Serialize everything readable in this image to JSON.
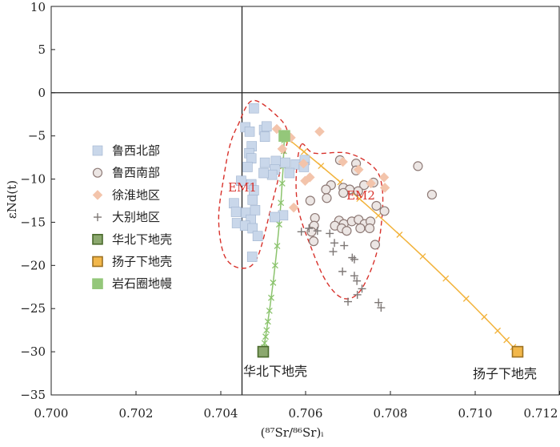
{
  "chart_data": {
    "type": "scatter",
    "xlim": [
      0.7,
      0.712
    ],
    "ylim": [
      -35,
      10
    ],
    "xticks": [
      "0.700",
      "0.702",
      "0.704",
      "0.706",
      "0.708",
      "0.710",
      "0.712"
    ],
    "yticks": [
      "10",
      "5",
      "0",
      "−5",
      "−10",
      "−15",
      "−20",
      "−25",
      "−30",
      "−35"
    ],
    "xlabel": "(⁸⁷Sr/⁸⁶Sr)ᵢ",
    "ylabel": "εNd(t)",
    "reference_lines": {
      "x": 0.7045,
      "y": 0
    },
    "legend_position": "left-middle",
    "series": [
      {
        "name": "鲁西北部",
        "marker": "square",
        "color": "#c9d7ea",
        "stroke": "#9fb3cf",
        "points": [
          [
            0.70478,
            -1.8
          ],
          [
            0.70458,
            -4.0
          ],
          [
            0.70468,
            -4.5
          ],
          [
            0.70502,
            -4.3
          ],
          [
            0.70508,
            -3.9
          ],
          [
            0.70504,
            -5.1
          ],
          [
            0.70473,
            -6.2
          ],
          [
            0.70467,
            -7.0
          ],
          [
            0.70472,
            -7.6
          ],
          [
            0.70463,
            -8.6
          ],
          [
            0.70504,
            -8.1
          ],
          [
            0.7053,
            -7.9
          ],
          [
            0.70552,
            -8.1
          ],
          [
            0.70577,
            -8.3
          ],
          [
            0.70598,
            -7.8
          ],
          [
            0.70596,
            -8.6
          ],
          [
            0.70527,
            -8.9
          ],
          [
            0.70521,
            -9.5
          ],
          [
            0.70501,
            -9.3
          ],
          [
            0.70562,
            -9.3
          ],
          [
            0.70448,
            -10.2
          ],
          [
            0.70472,
            -10.6
          ],
          [
            0.70478,
            -11.3
          ],
          [
            0.70475,
            -12.4
          ],
          [
            0.70431,
            -12.8
          ],
          [
            0.70436,
            -13.8
          ],
          [
            0.7046,
            -13.9
          ],
          [
            0.70481,
            -13.6
          ],
          [
            0.70547,
            -14.2
          ],
          [
            0.70527,
            -14.4
          ],
          [
            0.70471,
            -14.7
          ],
          [
            0.70438,
            -15.1
          ],
          [
            0.70457,
            -15.4
          ],
          [
            0.70475,
            -15.7
          ],
          [
            0.70487,
            -16.6
          ],
          [
            0.70474,
            -19.0
          ]
        ]
      },
      {
        "name": "鲁西南部",
        "marker": "circle",
        "color": "#ece6e4",
        "stroke": "#8e7a76",
        "points": [
          [
            0.70681,
            -7.8
          ],
          [
            0.70719,
            -8.2
          ],
          [
            0.70719,
            -9.0
          ],
          [
            0.7076,
            -10.4
          ],
          [
            0.7066,
            -10.7
          ],
          [
            0.70738,
            -10.7
          ],
          [
            0.70648,
            -11.2
          ],
          [
            0.70689,
            -11.0
          ],
          [
            0.70704,
            -11.2
          ],
          [
            0.70724,
            -11.4
          ],
          [
            0.70689,
            -11.6
          ],
          [
            0.7065,
            -12.2
          ],
          [
            0.70611,
            -12.5
          ],
          [
            0.70767,
            -13.1
          ],
          [
            0.70622,
            -14.5
          ],
          [
            0.7062,
            -15.4
          ],
          [
            0.70679,
            -14.8
          ],
          [
            0.7069,
            -15.2
          ],
          [
            0.70709,
            -14.9
          ],
          [
            0.70725,
            -14.7
          ],
          [
            0.70739,
            -15.2
          ],
          [
            0.70753,
            -14.9
          ],
          [
            0.70669,
            -15.4
          ],
          [
            0.70685,
            -15.7
          ],
          [
            0.70697,
            -16.0
          ],
          [
            0.70729,
            -15.7
          ],
          [
            0.70751,
            -15.7
          ],
          [
            0.70614,
            -16.1
          ],
          [
            0.70619,
            -17.2
          ],
          [
            0.70764,
            -17.6
          ],
          [
            0.70786,
            -13.7
          ],
          [
            0.70865,
            -8.5
          ],
          [
            0.70898,
            -11.8
          ]
        ]
      },
      {
        "name": "徐淮地区",
        "marker": "diamond",
        "color": "#f3c4ab",
        "stroke": "#f3c4ab",
        "points": [
          [
            0.70532,
            -4.2
          ],
          [
            0.70633,
            -4.5
          ],
          [
            0.70565,
            -5.2
          ],
          [
            0.70545,
            -6.5
          ],
          [
            0.70595,
            -8.2
          ],
          [
            0.70688,
            -8.0
          ],
          [
            0.70725,
            -8.9
          ],
          [
            0.70785,
            -9.8
          ],
          [
            0.7061,
            -9.8
          ],
          [
            0.70599,
            -10.2
          ],
          [
            0.70754,
            -10.5
          ],
          [
            0.70787,
            -11.0
          ],
          [
            0.70572,
            -13.3
          ]
        ]
      },
      {
        "name": "大别地区",
        "marker": "plus",
        "color": "#7d7775",
        "stroke": "#7d7775",
        "points": [
          [
            0.70608,
            -15.7
          ],
          [
            0.70628,
            -16.0
          ],
          [
            0.7059,
            -16.1
          ],
          [
            0.70657,
            -16.3
          ],
          [
            0.70668,
            -17.4
          ],
          [
            0.70691,
            -17.7
          ],
          [
            0.70665,
            -18.4
          ],
          [
            0.7071,
            -19.1
          ],
          [
            0.70715,
            -19.3
          ],
          [
            0.70687,
            -20.7
          ],
          [
            0.70715,
            -21.2
          ],
          [
            0.70721,
            -21.8
          ],
          [
            0.70733,
            -22.7
          ],
          [
            0.70722,
            -23.4
          ],
          [
            0.707,
            -24.2
          ],
          [
            0.70772,
            -24.3
          ],
          [
            0.70778,
            -24.9
          ]
        ]
      },
      {
        "name": "华北下地壳",
        "marker": "square-end",
        "color": "#8ba86e",
        "stroke": "#4a6a2c",
        "points": [
          [
            0.705,
            -30
          ]
        ]
      },
      {
        "name": "扬子下地壳",
        "marker": "square-end",
        "color": "#f2b74a",
        "stroke": "#9c7122",
        "points": [
          [
            0.711,
            -30
          ]
        ]
      },
      {
        "name": "岩石圈地幔",
        "marker": "square-end",
        "color": "#94c77a",
        "stroke": "#94c77a",
        "points": [
          [
            0.7055,
            -5
          ]
        ]
      }
    ],
    "mixing_lines": [
      {
        "from": "岩石圈地幔",
        "to": "华北下地壳",
        "color": "#8cc46e",
        "marker": "x"
      },
      {
        "from": "岩石圈地幔",
        "to": "扬子下地壳",
        "color": "#f2b33c",
        "marker": "x"
      }
    ],
    "fields": [
      {
        "label": "EM1",
        "color": "#d8322c"
      },
      {
        "label": "EM2",
        "color": "#d8322c"
      }
    ],
    "annotations": [
      {
        "text": "华北下地壳"
      },
      {
        "text": "扬子下地壳"
      }
    ]
  }
}
